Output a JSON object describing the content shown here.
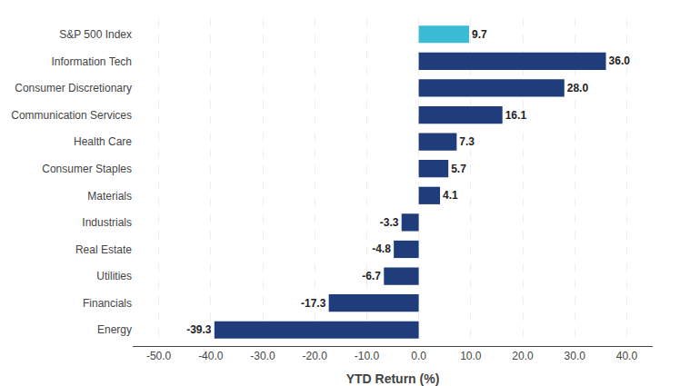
{
  "chart_data": {
    "type": "bar",
    "orientation": "horizontal",
    "categories": [
      "Energy",
      "Financials",
      "Utilities",
      "Real Estate",
      "Industrials",
      "Materials",
      "Consumer Staples",
      "Health Care",
      "Communication Services",
      "Consumer Discretionary",
      "Information Tech",
      "S&P 500 Index"
    ],
    "values": [
      -39.3,
      -17.3,
      -6.7,
      -4.8,
      -3.3,
      4.1,
      5.7,
      7.3,
      16.1,
      28.0,
      36.0,
      9.7
    ],
    "value_labels": [
      "-39.3",
      "-17.3",
      "-6.7",
      "-4.8",
      "-3.3",
      "4.1",
      "5.7",
      "7.3",
      "16.1",
      "28.0",
      "36.0",
      "9.7"
    ],
    "data_labels": true,
    "colors": [
      "#1f3d7a",
      "#1f3d7a",
      "#1f3d7a",
      "#1f3d7a",
      "#1f3d7a",
      "#1f3d7a",
      "#1f3d7a",
      "#1f3d7a",
      "#1f3d7a",
      "#1f3d7a",
      "#1f3d7a",
      "#3bbcd4"
    ],
    "xlabel": "YTD Return (%)",
    "xlim": [
      -55,
      45
    ],
    "xticks": [
      {
        "value": -50,
        "label": "-50.0"
      },
      {
        "value": -40,
        "label": "-40.0"
      },
      {
        "value": -30,
        "label": "-30.0"
      },
      {
        "value": -20,
        "label": "-20.0"
      },
      {
        "value": -10,
        "label": "-10.0"
      },
      {
        "value": 0,
        "label": "0.0"
      },
      {
        "value": 10,
        "label": "10.0"
      },
      {
        "value": 20,
        "label": "20.0"
      },
      {
        "value": 30,
        "label": "30.0"
      },
      {
        "value": 40,
        "label": "40.0"
      }
    ],
    "grid": true
  }
}
